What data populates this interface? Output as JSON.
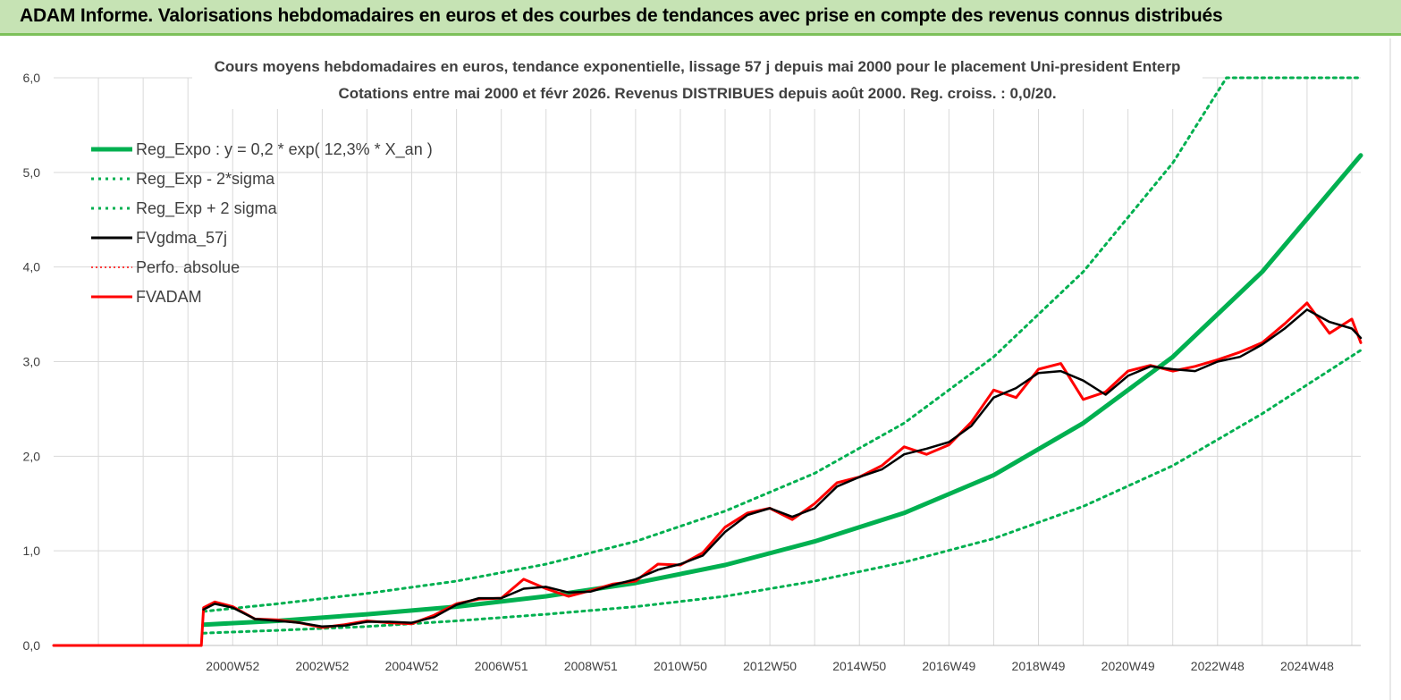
{
  "banner": {
    "title": "ADAM Informe. Valorisations hebdomadaires en euros et des courbes de tendances avec prise en compte des revenus connus distribués"
  },
  "chart_data": {
    "type": "line",
    "title_line1": "Cours moyens hebdomadaires en euros, tendance exponentielle, lissage 57 j depuis mai 2000 pour le placement Uni-president Enterp",
    "title_line2": "Cotations entre mai 2000 et févr 2026. Revenus DISTRIBUES depuis août 2000. Reg. croiss. : 0,0/20.",
    "ylim": [
      0,
      6
    ],
    "y_ticks": [
      "0,0",
      "1,0",
      "2,0",
      "3,0",
      "4,0",
      "5,0",
      "6,0"
    ],
    "xlim": [
      1997.0,
      2026.2
    ],
    "x_ticks": [
      {
        "label": "2000W52",
        "x": 2001.0
      },
      {
        "label": "2002W52",
        "x": 2003.0
      },
      {
        "label": "2004W52",
        "x": 2005.0
      },
      {
        "label": "2006W51",
        "x": 2007.0
      },
      {
        "label": "2008W51",
        "x": 2009.0
      },
      {
        "label": "2010W50",
        "x": 2011.0
      },
      {
        "label": "2012W50",
        "x": 2013.0
      },
      {
        "label": "2014W50",
        "x": 2015.0
      },
      {
        "label": "2016W49",
        "x": 2017.0
      },
      {
        "label": "2018W49",
        "x": 2019.0
      },
      {
        "label": "2020W49",
        "x": 2021.0
      },
      {
        "label": "2022W48",
        "x": 2023.0
      },
      {
        "label": "2024W48",
        "x": 2025.0
      }
    ],
    "grid": true,
    "legend_position": "top-left",
    "colors": {
      "reg_expo": "#00b050",
      "sigma": "#00b050",
      "fvgdma": "#000000",
      "perfo": "#ff0000",
      "fvadam": "#ff0000",
      "grid": "#d9d9d9",
      "axis": "#bfbfbf"
    },
    "series": [
      {
        "name": "Reg_Expo : y = 0,2 * exp( 12,3% *  X_an )",
        "style": "solid-thick",
        "x": [
          2000.35,
          2002,
          2004,
          2006,
          2008,
          2010,
          2012,
          2014,
          2016,
          2018,
          2020,
          2022,
          2024,
          2026.2
        ],
        "values": [
          0.22,
          0.26,
          0.33,
          0.41,
          0.52,
          0.66,
          0.85,
          1.1,
          1.4,
          1.8,
          2.35,
          3.05,
          3.95,
          5.18
        ]
      },
      {
        "name": "Reg_Exp - 2*sigma",
        "style": "dotted",
        "x": [
          2000.35,
          2002,
          2004,
          2006,
          2008,
          2010,
          2012,
          2014,
          2016,
          2018,
          2020,
          2022,
          2024,
          2026.2
        ],
        "values": [
          0.13,
          0.16,
          0.2,
          0.26,
          0.33,
          0.41,
          0.52,
          0.68,
          0.88,
          1.13,
          1.47,
          1.9,
          2.45,
          3.12
        ]
      },
      {
        "name": "Reg_Exp + 2 sigma",
        "style": "dotted",
        "x": [
          2000.35,
          2002,
          2004,
          2006,
          2008,
          2010,
          2012,
          2014,
          2016,
          2018,
          2020,
          2022,
          2023.2,
          2026.2
        ],
        "values": [
          0.36,
          0.44,
          0.55,
          0.68,
          0.86,
          1.1,
          1.42,
          1.82,
          2.35,
          3.05,
          3.95,
          5.1,
          6.0,
          6.0
        ]
      },
      {
        "name": "FVgdma_57j",
        "style": "solid",
        "x": [
          2000.35,
          2000.6,
          2001.0,
          2001.5,
          2002.0,
          2002.5,
          2003.0,
          2003.5,
          2004.0,
          2004.5,
          2005.0,
          2005.5,
          2006.0,
          2006.5,
          2007.0,
          2007.5,
          2008.0,
          2008.5,
          2009.0,
          2009.5,
          2010.0,
          2010.5,
          2011.0,
          2011.5,
          2012.0,
          2012.5,
          2013.0,
          2013.5,
          2014.0,
          2014.5,
          2015.0,
          2015.5,
          2016.0,
          2016.5,
          2017.0,
          2017.5,
          2018.0,
          2018.5,
          2019.0,
          2019.5,
          2020.0,
          2020.5,
          2021.0,
          2021.5,
          2022.0,
          2022.5,
          2023.0,
          2023.5,
          2024.0,
          2024.5,
          2025.0,
          2025.5,
          2026.0,
          2026.2
        ],
        "values": [
          0.38,
          0.44,
          0.4,
          0.28,
          0.26,
          0.24,
          0.2,
          0.21,
          0.25,
          0.25,
          0.24,
          0.3,
          0.43,
          0.5,
          0.5,
          0.6,
          0.62,
          0.56,
          0.57,
          0.64,
          0.7,
          0.8,
          0.86,
          0.95,
          1.2,
          1.38,
          1.45,
          1.36,
          1.45,
          1.68,
          1.78,
          1.86,
          2.02,
          2.08,
          2.15,
          2.32,
          2.62,
          2.72,
          2.88,
          2.9,
          2.8,
          2.65,
          2.85,
          2.95,
          2.92,
          2.9,
          3.0,
          3.05,
          3.18,
          3.35,
          3.55,
          3.42,
          3.35,
          3.25
        ]
      },
      {
        "name": "Perfo. absolue",
        "style": "dotted",
        "x": [
          1997.0,
          2000.3,
          2000.35,
          2000.6,
          2001.0,
          2001.5,
          2002.0,
          2002.5,
          2003.0,
          2003.5,
          2004.0,
          2004.5,
          2005.0,
          2005.5,
          2006.0,
          2006.5,
          2007.0,
          2007.5,
          2008.0,
          2008.5,
          2009.0,
          2009.5,
          2010.0,
          2010.5,
          2011.0,
          2011.5,
          2012.0,
          2012.5,
          2013.0,
          2013.5,
          2014.0,
          2014.5,
          2015.0,
          2015.5,
          2016.0,
          2016.5,
          2017.0,
          2017.5,
          2018.0,
          2018.5,
          2019.0,
          2019.5,
          2020.0,
          2020.5,
          2021.0,
          2021.5,
          2022.0,
          2022.5,
          2023.0,
          2023.5,
          2024.0,
          2024.5,
          2025.0,
          2025.5,
          2026.0,
          2026.2
        ],
        "values": [
          0.0,
          0.0,
          0.4,
          0.46,
          0.41,
          0.28,
          0.27,
          0.24,
          0.19,
          0.22,
          0.26,
          0.24,
          0.23,
          0.32,
          0.44,
          0.49,
          0.5,
          0.7,
          0.6,
          0.52,
          0.58,
          0.65,
          0.68,
          0.86,
          0.85,
          0.98,
          1.25,
          1.4,
          1.45,
          1.33,
          1.5,
          1.72,
          1.78,
          1.9,
          2.1,
          2.02,
          2.12,
          2.36,
          2.7,
          2.62,
          2.92,
          2.98,
          2.6,
          2.68,
          2.9,
          2.96,
          2.9,
          2.95,
          3.02,
          3.1,
          3.2,
          3.4,
          3.62,
          3.3,
          3.45,
          3.2
        ]
      },
      {
        "name": "FVADAM",
        "style": "solid-thick",
        "x": [
          1997.0,
          2000.3,
          2000.35,
          2000.6,
          2001.0,
          2001.5,
          2002.0,
          2002.5,
          2003.0,
          2003.5,
          2004.0,
          2004.5,
          2005.0,
          2005.5,
          2006.0,
          2006.5,
          2007.0,
          2007.5,
          2008.0,
          2008.5,
          2009.0,
          2009.5,
          2010.0,
          2010.5,
          2011.0,
          2011.5,
          2012.0,
          2012.5,
          2013.0,
          2013.5,
          2014.0,
          2014.5,
          2015.0,
          2015.5,
          2016.0,
          2016.5,
          2017.0,
          2017.5,
          2018.0,
          2018.5,
          2019.0,
          2019.5,
          2020.0,
          2020.5,
          2021.0,
          2021.5,
          2022.0,
          2022.5,
          2023.0,
          2023.5,
          2024.0,
          2024.5,
          2025.0,
          2025.5,
          2026.0,
          2026.2
        ],
        "values": [
          0.0,
          0.0,
          0.4,
          0.46,
          0.41,
          0.28,
          0.27,
          0.24,
          0.19,
          0.22,
          0.26,
          0.24,
          0.23,
          0.32,
          0.44,
          0.49,
          0.5,
          0.7,
          0.6,
          0.52,
          0.58,
          0.65,
          0.68,
          0.86,
          0.85,
          0.98,
          1.25,
          1.4,
          1.45,
          1.33,
          1.5,
          1.72,
          1.78,
          1.9,
          2.1,
          2.02,
          2.12,
          2.36,
          2.7,
          2.62,
          2.92,
          2.98,
          2.6,
          2.68,
          2.9,
          2.96,
          2.9,
          2.95,
          3.02,
          3.1,
          3.2,
          3.4,
          3.62,
          3.3,
          3.45,
          3.2
        ]
      }
    ]
  }
}
